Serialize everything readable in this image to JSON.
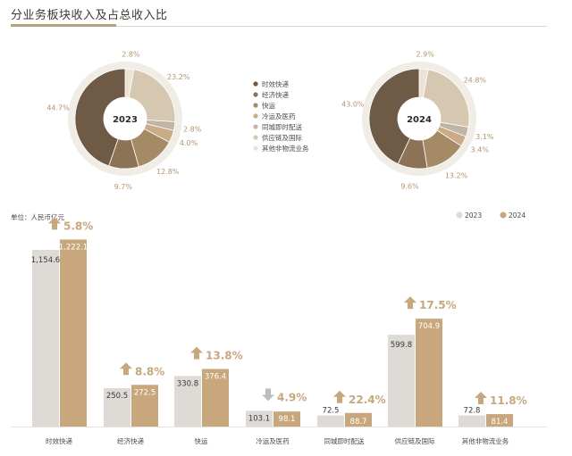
{
  "title": "分业务板块收入及占总收入比",
  "colors": {
    "c2023": "#dedbd7",
    "c2024": "#c9a77c",
    "growth": "#c9a77c",
    "decline": "#bdbdbd",
    "label": "#b8956a",
    "series": [
      "#6e5a45",
      "#8c7355",
      "#a58a66",
      "#c9ab85",
      "#bfb4a6",
      "#d6c7b0",
      "#ece3d4"
    ]
  },
  "chart_data": [
    {
      "type": "pie",
      "title": "2023",
      "categories": [
        "时效快递",
        "经济快递",
        "快运",
        "冷运及医药",
        "同城即时配送",
        "供应链及国际",
        "其他非物流业务"
      ],
      "values": [
        44.7,
        9.7,
        12.8,
        4.0,
        2.8,
        23.2,
        2.8
      ],
      "value_labels": [
        "44.7%",
        "9.7%",
        "12.8%",
        "4.0%",
        "2.8%",
        "23.2%",
        "2.8%"
      ]
    },
    {
      "type": "pie",
      "title": "2024",
      "categories": [
        "时效快递",
        "经济快递",
        "快运",
        "冷运及医药",
        "同城即时配送",
        "供应链及国际",
        "其他非物流业务"
      ],
      "values": [
        43.0,
        9.6,
        13.2,
        3.4,
        3.1,
        24.8,
        2.9
      ],
      "value_labels": [
        "43.0%",
        "9.6%",
        "13.2%",
        "3.4%",
        "3.1%",
        "24.8%",
        "2.9%"
      ]
    },
    {
      "type": "bar",
      "unit_label": "单位：人民币亿元",
      "categories": [
        "时效快递",
        "经济快递",
        "快运",
        "冷运及医药",
        "同城即时配送",
        "供应链及国际",
        "其他非物流业务"
      ],
      "series": [
        {
          "name": "2023",
          "values": [
            1154.6,
            250.5,
            330.8,
            103.1,
            72.5,
            599.8,
            72.8
          ],
          "value_labels": [
            "1,154.6",
            "250.5",
            "330.8",
            "103.1",
            "72.5",
            "599.8",
            "72.8"
          ]
        },
        {
          "name": "2024",
          "values": [
            1222.1,
            272.5,
            376.4,
            98.1,
            88.7,
            704.9,
            81.4
          ],
          "value_labels": [
            "1,222.1",
            "272.5",
            "376.4",
            "98.1",
            "88.7",
            "704.9",
            "81.4"
          ]
        }
      ],
      "growth": [
        "5.8%",
        "8.8%",
        "13.8%",
        "4.9%",
        "22.4%",
        "17.5%",
        "11.8%"
      ],
      "growth_direction": [
        "up",
        "up",
        "up",
        "down",
        "up",
        "up",
        "up"
      ],
      "legend_position": "top-right",
      "ylim": [
        0,
        1300
      ]
    }
  ]
}
